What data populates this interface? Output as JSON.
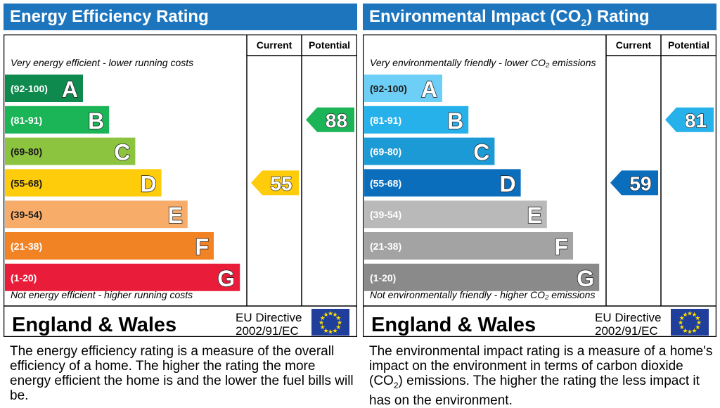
{
  "panels": [
    {
      "id": "ee",
      "title": "Energy Efficiency Rating",
      "col_current": "Current",
      "col_potential": "Potential",
      "top_note": "Very energy efficient - lower running costs",
      "bottom_note": "Not energy efficient - higher running costs",
      "region": "England & Wales",
      "directive_line1": "EU Directive",
      "directive_line2": "2002/91/EC",
      "description": "The energy efficiency rating is a measure of the overall efficiency of a home. The higher the rating the more energy efficient the home is and the lower the fuel bills will be."
    },
    {
      "id": "ei",
      "title_pre": "Environmental Impact (CO",
      "title_sub": "2",
      "title_post": ") Rating",
      "col_current": "Current",
      "col_potential": "Potential",
      "top_note": "Very environmentally friendly - lower CO₂ emissions",
      "bottom_note": "Not environmentally friendly - higher CO₂ emissions",
      "region": "England & Wales",
      "directive_line1": "EU Directive",
      "directive_line2": "2002/91/EC",
      "description_pre": "The environmental impact rating is a measure of a home's impact on the environment in terms of carbon dioxide (CO",
      "description_sub": "2",
      "description_post": ") emissions. The higher the rating the less impact it has on the environment."
    }
  ],
  "chart_data": [
    {
      "type": "bar",
      "categories": [
        "(92-100)",
        "(81-91)",
        "(69-80)",
        "(55-68)",
        "(39-54)",
        "(21-38)",
        "(1-20)"
      ],
      "letters": [
        "A",
        "B",
        "C",
        "D",
        "E",
        "F",
        "G"
      ],
      "colors": [
        "#0e8a4e",
        "#1bb457",
        "#8dc43f",
        "#fecc0a",
        "#f8ac6a",
        "#f28325",
        "#e91d39"
      ],
      "current": 55,
      "potential": 88,
      "current_color": "#fecc0a",
      "potential_color": "#1bb457"
    },
    {
      "type": "bar",
      "categories": [
        "(92-100)",
        "(81-91)",
        "(69-80)",
        "(55-68)",
        "(39-54)",
        "(21-38)",
        "(1-20)"
      ],
      "letters": [
        "A",
        "B",
        "C",
        "D",
        "E",
        "F",
        "G"
      ],
      "colors": [
        "#6ecff6",
        "#26b1ea",
        "#1c9ad6",
        "#0b6ebd",
        "#b9b9b9",
        "#a3a3a3",
        "#8a8a8a"
      ],
      "current": 59,
      "potential": 81,
      "current_color": "#0b6ebd",
      "potential_color": "#26b1ea"
    }
  ]
}
